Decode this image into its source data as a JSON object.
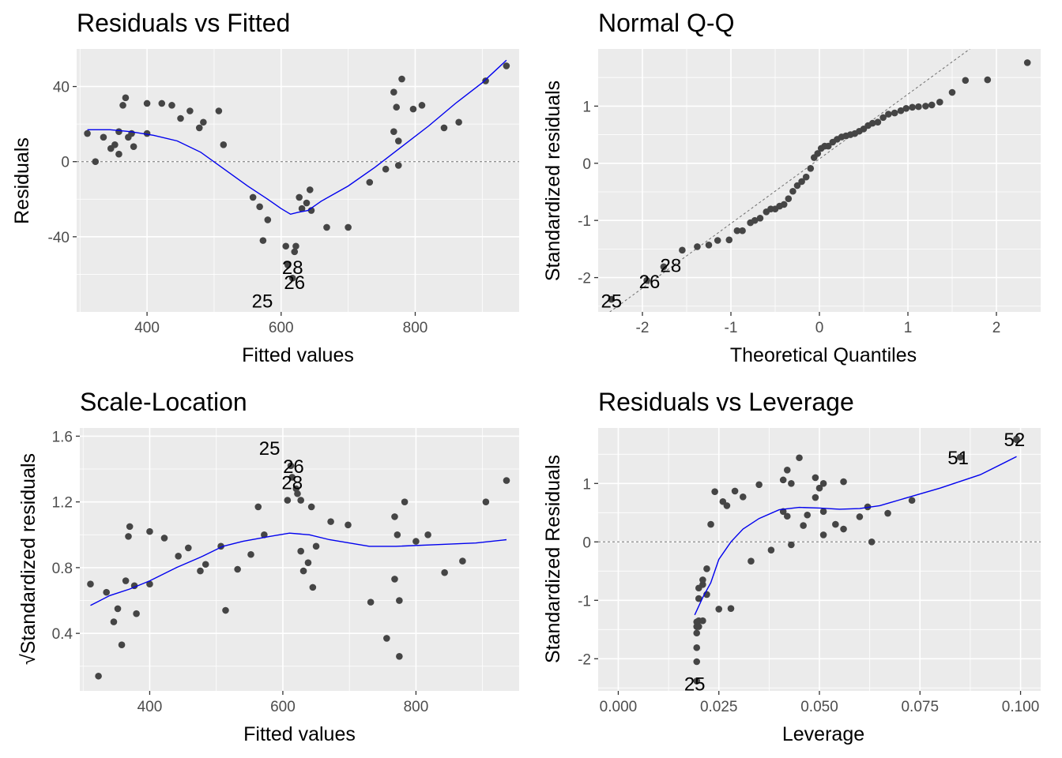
{
  "chart_data": [
    {
      "id": "resid-fitted",
      "type": "scatter",
      "title": "Residuals vs Fitted",
      "xlabel": "Fitted values",
      "ylabel": "Residuals",
      "xlim": [
        295,
        955
      ],
      "ylim": [
        -80,
        60
      ],
      "xticks": [
        400,
        600,
        800
      ],
      "yticks": [
        -40,
        0,
        40
      ],
      "hline": 0,
      "points": [
        [
          311,
          15
        ],
        [
          323,
          0
        ],
        [
          335,
          13
        ],
        [
          346,
          7
        ],
        [
          352,
          9
        ],
        [
          358,
          4
        ],
        [
          358,
          16
        ],
        [
          364,
          30
        ],
        [
          368,
          34
        ],
        [
          372,
          13
        ],
        [
          377,
          15
        ],
        [
          380,
          8
        ],
        [
          400,
          31
        ],
        [
          400,
          15
        ],
        [
          422,
          31
        ],
        [
          437,
          30
        ],
        [
          450,
          23
        ],
        [
          464,
          27
        ],
        [
          478,
          18
        ],
        [
          484,
          21
        ],
        [
          507,
          27
        ],
        [
          514,
          9
        ],
        [
          558,
          -19
        ],
        [
          568,
          -24
        ],
        [
          573,
          -42
        ],
        [
          580,
          -31
        ],
        [
          607,
          -45
        ],
        [
          610,
          -55
        ],
        [
          617,
          -62
        ],
        [
          620,
          -48
        ],
        [
          622,
          -45
        ],
        [
          627,
          -19
        ],
        [
          631,
          -25
        ],
        [
          638,
          -22
        ],
        [
          643,
          -15
        ],
        [
          645,
          -26
        ],
        [
          668,
          -35
        ],
        [
          700,
          -35
        ],
        [
          732,
          -11
        ],
        [
          756,
          -4
        ],
        [
          768,
          16
        ],
        [
          768,
          37
        ],
        [
          772,
          29
        ],
        [
          775,
          -2
        ],
        [
          775,
          11
        ],
        [
          780,
          44
        ],
        [
          797,
          28
        ],
        [
          810,
          30
        ],
        [
          843,
          18
        ],
        [
          865,
          21
        ],
        [
          905,
          43
        ],
        [
          936,
          51
        ]
      ],
      "smooth": [
        [
          311,
          17
        ],
        [
          345,
          17
        ],
        [
          375,
          16
        ],
        [
          410,
          14
        ],
        [
          445,
          11
        ],
        [
          480,
          5
        ],
        [
          515,
          -4
        ],
        [
          550,
          -13
        ],
        [
          580,
          -20
        ],
        [
          600,
          -25
        ],
        [
          614,
          -28
        ],
        [
          625,
          -27
        ],
        [
          640,
          -26
        ],
        [
          660,
          -21
        ],
        [
          700,
          -13
        ],
        [
          740,
          -3
        ],
        [
          780,
          8
        ],
        [
          820,
          19
        ],
        [
          860,
          31
        ],
        [
          900,
          42
        ],
        [
          936,
          54
        ]
      ],
      "labels": [
        {
          "text": "28",
          "x": 617,
          "y": -56
        },
        {
          "text": "26",
          "x": 620,
          "y": -64
        },
        {
          "text": "25",
          "x": 572,
          "y": -74
        }
      ]
    },
    {
      "id": "normal-qq",
      "type": "scatter",
      "title": "Normal Q-Q",
      "xlabel": "Theoretical Quantiles",
      "ylabel": "Standardized residuals",
      "xlim": [
        -2.5,
        2.5
      ],
      "ylim": [
        -2.6,
        2.0
      ],
      "xticks": [
        -2,
        -1,
        0,
        1,
        2
      ],
      "yticks": [
        -2,
        -1,
        0,
        1
      ],
      "refline": [
        [
          -2.5,
          -2.75
        ],
        [
          1.7,
          2.0
        ]
      ],
      "points": [
        [
          -2.35,
          -2.38
        ],
        [
          -1.95,
          -2.05
        ],
        [
          -1.76,
          -1.81
        ],
        [
          -1.55,
          -1.52
        ],
        [
          -1.38,
          -1.46
        ],
        [
          -1.25,
          -1.43
        ],
        [
          -1.15,
          -1.35
        ],
        [
          -1.02,
          -1.34
        ],
        [
          -0.93,
          -1.18
        ],
        [
          -0.87,
          -1.18
        ],
        [
          -0.78,
          -1.04
        ],
        [
          -0.73,
          -1.0
        ],
        [
          -0.67,
          -0.96
        ],
        [
          -0.6,
          -0.85
        ],
        [
          -0.55,
          -0.8
        ],
        [
          -0.5,
          -0.8
        ],
        [
          -0.45,
          -0.75
        ],
        [
          -0.4,
          -0.72
        ],
        [
          -0.35,
          -0.62
        ],
        [
          -0.3,
          -0.49
        ],
        [
          -0.25,
          -0.39
        ],
        [
          -0.2,
          -0.32
        ],
        [
          -0.15,
          -0.24
        ],
        [
          -0.1,
          -0.09
        ],
        [
          -0.06,
          0.1
        ],
        [
          -0.02,
          0.17
        ],
        [
          0.02,
          0.26
        ],
        [
          0.06,
          0.3
        ],
        [
          0.1,
          0.3
        ],
        [
          0.15,
          0.37
        ],
        [
          0.2,
          0.42
        ],
        [
          0.25,
          0.46
        ],
        [
          0.3,
          0.48
        ],
        [
          0.35,
          0.5
        ],
        [
          0.4,
          0.52
        ],
        [
          0.45,
          0.56
        ],
        [
          0.5,
          0.6
        ],
        [
          0.55,
          0.66
        ],
        [
          0.6,
          0.7
        ],
        [
          0.66,
          0.72
        ],
        [
          0.72,
          0.8
        ],
        [
          0.78,
          0.86
        ],
        [
          0.85,
          0.88
        ],
        [
          0.92,
          0.92
        ],
        [
          0.98,
          0.96
        ],
        [
          1.05,
          0.98
        ],
        [
          1.12,
          0.99
        ],
        [
          1.2,
          1.0
        ],
        [
          1.27,
          1.02
        ],
        [
          1.36,
          1.07
        ],
        [
          1.5,
          1.24
        ],
        [
          1.65,
          1.45
        ],
        [
          1.9,
          1.46
        ],
        [
          2.35,
          1.76
        ]
      ],
      "labels": [
        {
          "text": "28",
          "x": -1.68,
          "y": -1.78
        },
        {
          "text": "26",
          "x": -1.92,
          "y": -2.06
        },
        {
          "text": "25",
          "x": -2.35,
          "y": -2.4
        }
      ]
    },
    {
      "id": "scale-location",
      "type": "scatter",
      "title": "Scale-Location",
      "xlabel": "Fitted values",
      "ylabel": "√Standardized residuals",
      "xlim": [
        295,
        955
      ],
      "ylim": [
        0.05,
        1.65
      ],
      "xticks": [
        400,
        600,
        800
      ],
      "yticks": [
        0.4,
        0.8,
        1.2,
        1.6
      ],
      "points": [
        [
          311,
          0.7
        ],
        [
          323,
          0.14
        ],
        [
          335,
          0.65
        ],
        [
          346,
          0.47
        ],
        [
          352,
          0.55
        ],
        [
          358,
          0.33
        ],
        [
          364,
          0.72
        ],
        [
          368,
          0.99
        ],
        [
          370,
          1.05
        ],
        [
          377,
          0.69
        ],
        [
          380,
          0.52
        ],
        [
          400,
          0.7
        ],
        [
          400,
          1.02
        ],
        [
          422,
          0.98
        ],
        [
          443,
          0.87
        ],
        [
          458,
          0.92
        ],
        [
          476,
          0.78
        ],
        [
          484,
          0.82
        ],
        [
          507,
          0.93
        ],
        [
          514,
          0.54
        ],
        [
          532,
          0.79
        ],
        [
          552,
          0.88
        ],
        [
          563,
          1.17
        ],
        [
          572,
          1.0
        ],
        [
          607,
          1.21
        ],
        [
          612,
          1.42
        ],
        [
          614,
          1.35
        ],
        [
          620,
          1.28
        ],
        [
          622,
          1.25
        ],
        [
          627,
          0.9
        ],
        [
          627,
          1.21
        ],
        [
          631,
          0.78
        ],
        [
          638,
          0.83
        ],
        [
          643,
          1.17
        ],
        [
          645,
          0.68
        ],
        [
          650,
          0.93
        ],
        [
          672,
          1.08
        ],
        [
          698,
          1.06
        ],
        [
          732,
          0.59
        ],
        [
          756,
          0.37
        ],
        [
          768,
          0.73
        ],
        [
          768,
          1.11
        ],
        [
          772,
          1.0
        ],
        [
          775,
          0.26
        ],
        [
          775,
          0.6
        ],
        [
          783,
          1.2
        ],
        [
          800,
          0.96
        ],
        [
          818,
          1.0
        ],
        [
          843,
          0.77
        ],
        [
          870,
          0.84
        ],
        [
          905,
          1.2
        ],
        [
          936,
          1.33
        ]
      ],
      "smooth": [
        [
          311,
          0.57
        ],
        [
          340,
          0.63
        ],
        [
          370,
          0.67
        ],
        [
          400,
          0.72
        ],
        [
          440,
          0.8
        ],
        [
          480,
          0.87
        ],
        [
          510,
          0.93
        ],
        [
          540,
          0.96
        ],
        [
          580,
          0.99
        ],
        [
          610,
          1.01
        ],
        [
          640,
          1.0
        ],
        [
          670,
          0.97
        ],
        [
          700,
          0.95
        ],
        [
          730,
          0.93
        ],
        [
          770,
          0.93
        ],
        [
          830,
          0.94
        ],
        [
          890,
          0.95
        ],
        [
          936,
          0.97
        ]
      ],
      "labels": [
        {
          "text": "25",
          "x": 580,
          "y": 1.53
        },
        {
          "text": "26",
          "x": 616,
          "y": 1.42
        },
        {
          "text": "28",
          "x": 614,
          "y": 1.32
        }
      ]
    },
    {
      "id": "resid-leverage",
      "type": "scatter",
      "title": "Residuals vs Leverage",
      "xlabel": "Leverage",
      "ylabel": "Standardized Residuals",
      "xlim": [
        -0.005,
        0.105
      ],
      "ylim": [
        -2.55,
        1.95
      ],
      "xticks": [
        0.0,
        0.025,
        0.05,
        0.075,
        0.1
      ],
      "xtick_labels": [
        "0.000",
        "0.025",
        "0.050",
        "0.075",
        "0.100"
      ],
      "yticks": [
        -2,
        -1,
        0,
        1
      ],
      "hline": 0,
      "points": [
        [
          0.0195,
          -2.38
        ],
        [
          0.0195,
          -2.05
        ],
        [
          0.0195,
          -1.81
        ],
        [
          0.0195,
          -1.56
        ],
        [
          0.0195,
          -1.45
        ],
        [
          0.0195,
          -1.37
        ],
        [
          0.02,
          -1.35
        ],
        [
          0.02,
          -1.45
        ],
        [
          0.021,
          -1.35
        ],
        [
          0.02,
          -0.97
        ],
        [
          0.02,
          -0.79
        ],
        [
          0.021,
          -0.73
        ],
        [
          0.022,
          -0.9
        ],
        [
          0.021,
          -0.65
        ],
        [
          0.022,
          -0.46
        ],
        [
          0.023,
          0.3
        ],
        [
          0.024,
          0.86
        ],
        [
          0.025,
          -1.15
        ],
        [
          0.026,
          0.69
        ],
        [
          0.027,
          0.62
        ],
        [
          0.028,
          -1.14
        ],
        [
          0.029,
          0.87
        ],
        [
          0.031,
          0.77
        ],
        [
          0.033,
          -0.33
        ],
        [
          0.035,
          0.98
        ],
        [
          0.038,
          -0.14
        ],
        [
          0.041,
          1.06
        ],
        [
          0.041,
          0.52
        ],
        [
          0.042,
          1.23
        ],
        [
          0.042,
          0.44
        ],
        [
          0.043,
          -0.05
        ],
        [
          0.043,
          1.0
        ],
        [
          0.045,
          1.44
        ],
        [
          0.046,
          0.28
        ],
        [
          0.047,
          0.46
        ],
        [
          0.049,
          0.76
        ],
        [
          0.049,
          1.1
        ],
        [
          0.05,
          0.92
        ],
        [
          0.051,
          1.0
        ],
        [
          0.051,
          0.12
        ],
        [
          0.051,
          0.52
        ],
        [
          0.054,
          0.3
        ],
        [
          0.056,
          0.22
        ],
        [
          0.056,
          1.03
        ],
        [
          0.06,
          0.43
        ],
        [
          0.062,
          0.6
        ],
        [
          0.063,
          0.0
        ],
        [
          0.067,
          0.49
        ],
        [
          0.073,
          0.71
        ],
        [
          0.085,
          1.45
        ],
        [
          0.099,
          1.76
        ],
        [
          0.099,
          1.75
        ]
      ],
      "smooth": [
        [
          0.019,
          -1.25
        ],
        [
          0.02,
          -1.1
        ],
        [
          0.021,
          -0.95
        ],
        [
          0.023,
          -0.7
        ],
        [
          0.025,
          -0.3
        ],
        [
          0.028,
          0.0
        ],
        [
          0.031,
          0.22
        ],
        [
          0.035,
          0.4
        ],
        [
          0.04,
          0.55
        ],
        [
          0.045,
          0.59
        ],
        [
          0.05,
          0.58
        ],
        [
          0.055,
          0.56
        ],
        [
          0.06,
          0.57
        ],
        [
          0.065,
          0.62
        ],
        [
          0.07,
          0.72
        ],
        [
          0.08,
          0.92
        ],
        [
          0.09,
          1.15
        ],
        [
          0.099,
          1.46
        ]
      ],
      "labels": [
        {
          "text": "51",
          "x": 0.0845,
          "y": 1.45
        },
        {
          "text": "52",
          "x": 0.0985,
          "y": 1.76
        },
        {
          "text": "25",
          "x": 0.019,
          "y": -2.42
        }
      ]
    }
  ]
}
